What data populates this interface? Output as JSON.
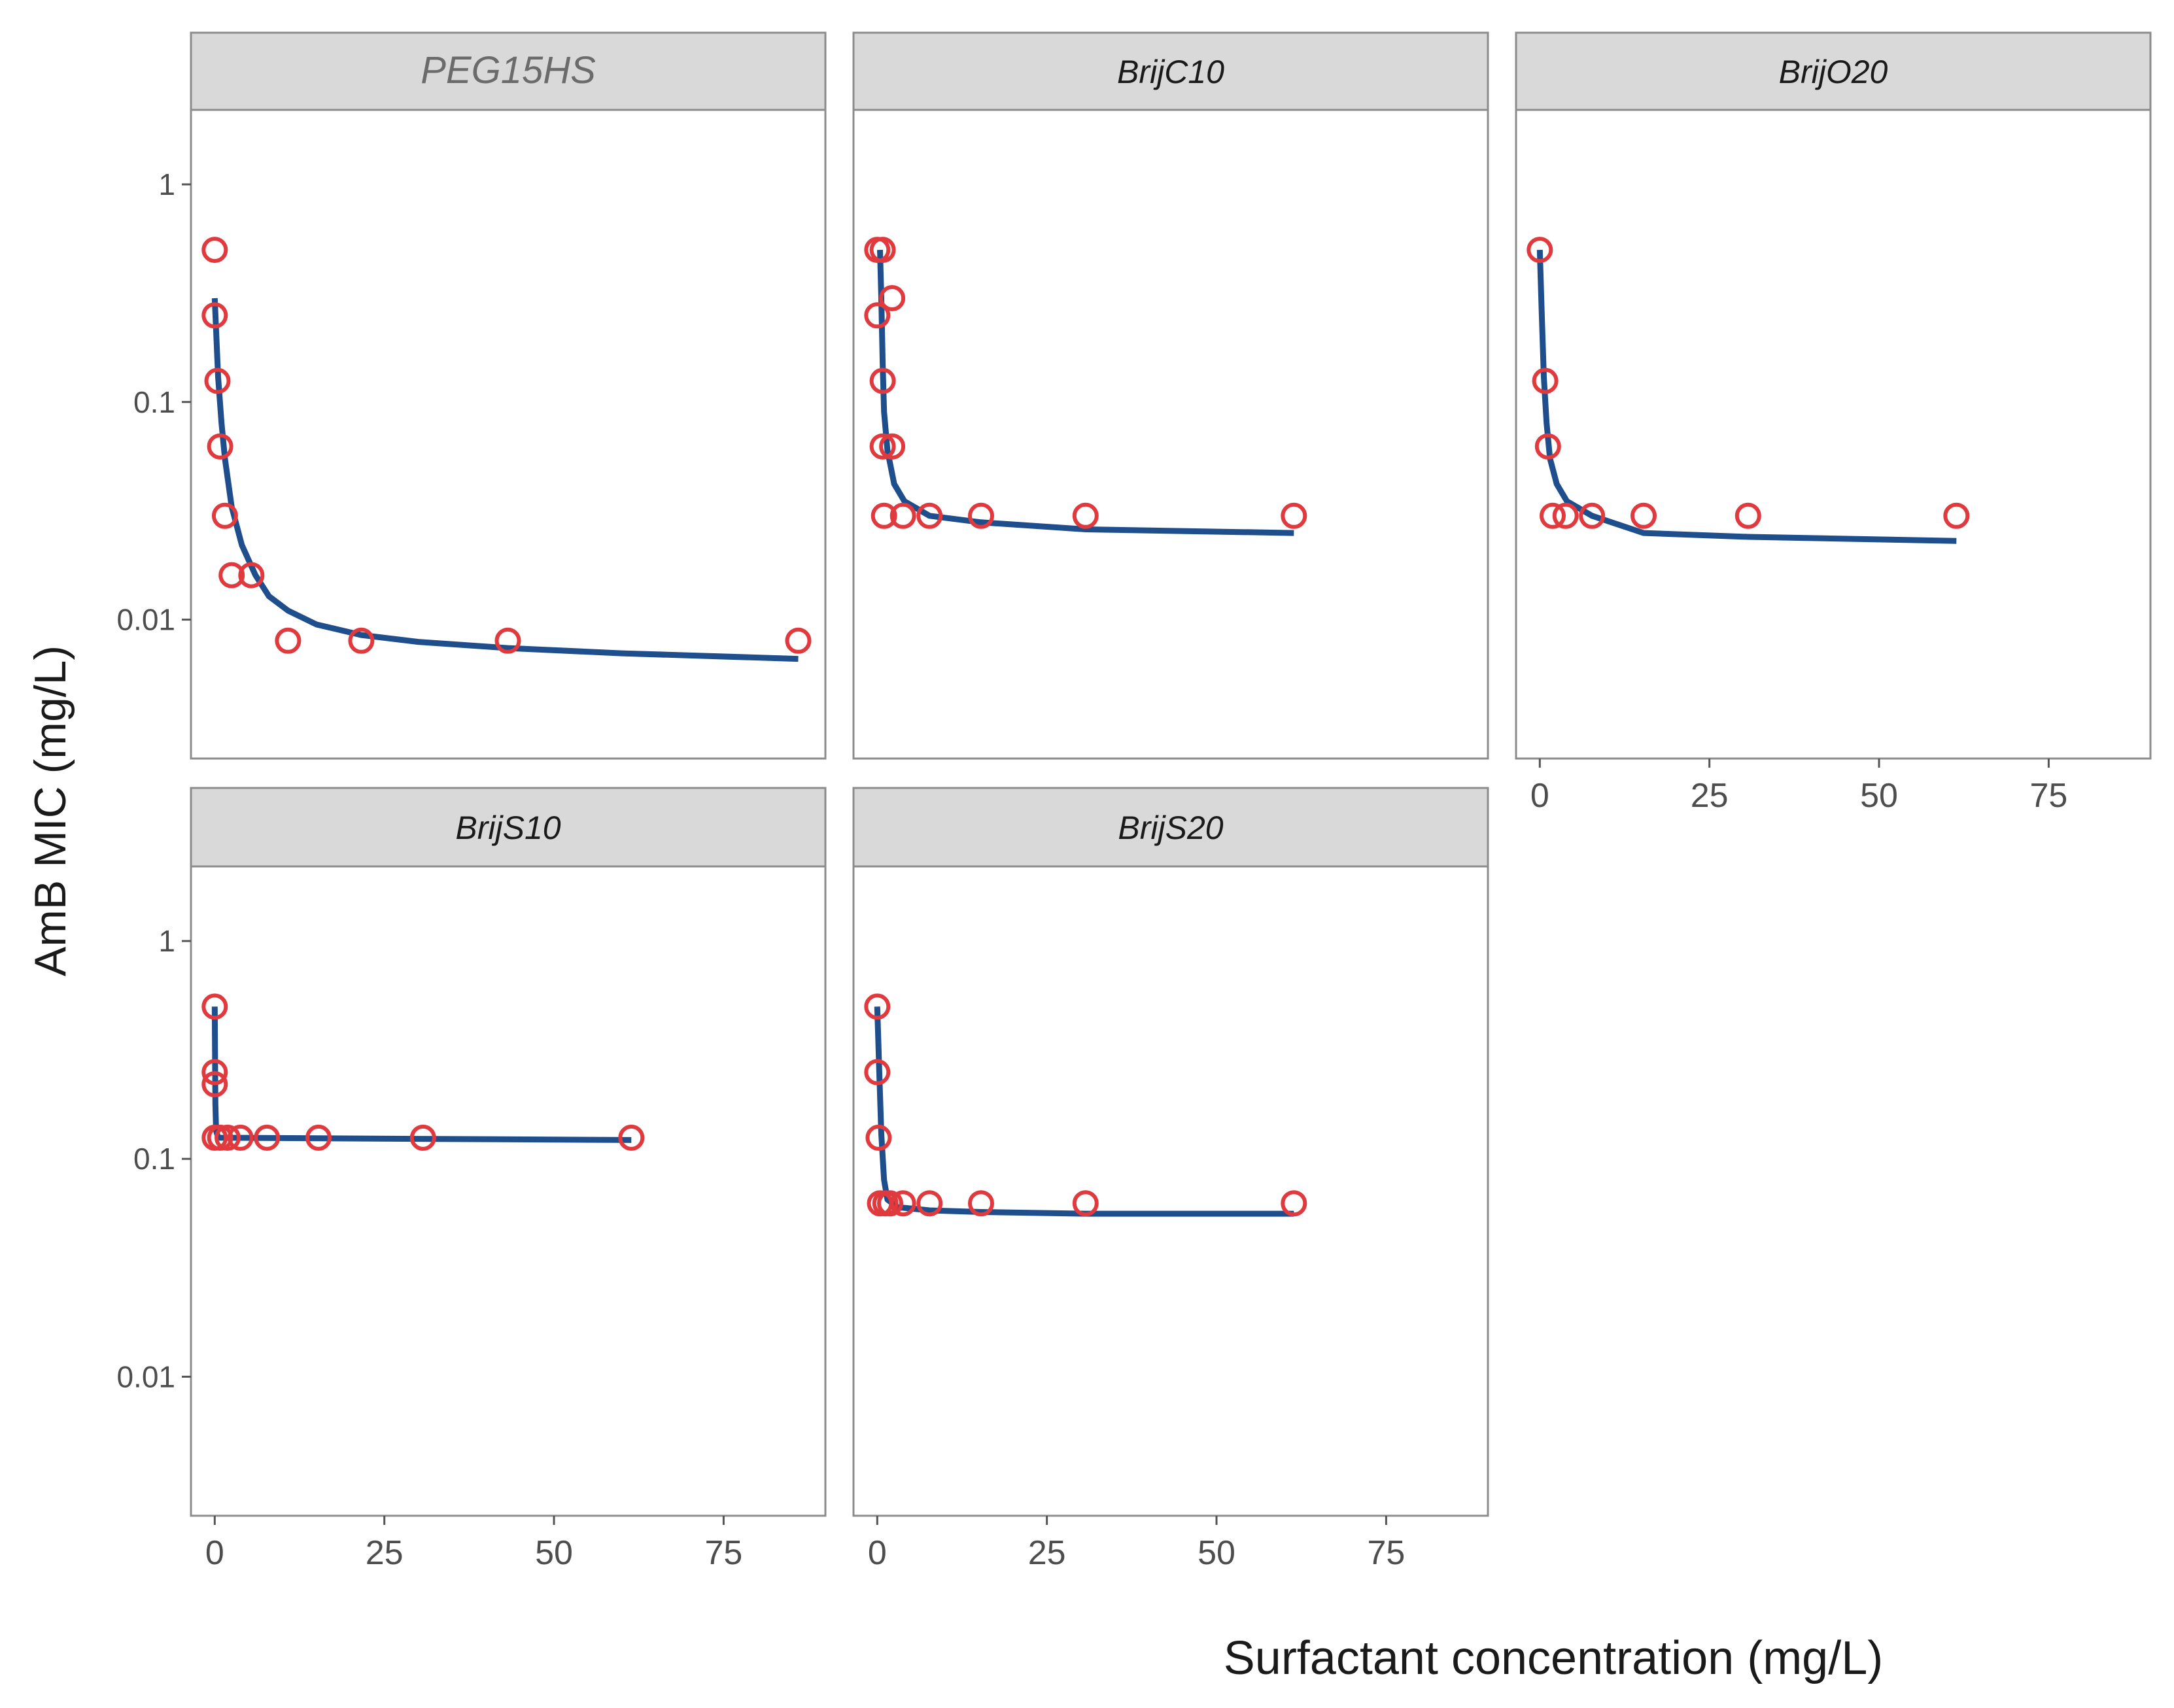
{
  "chart_data": {
    "type": "scatter",
    "kind": "faceted scatter with fitted curves",
    "xlabel": "Surfactant concentration (mg/L)",
    "ylabel": "AmB MIC (mg/L)",
    "xlim": [
      -3.5,
      90
    ],
    "x_ticks": [
      0,
      25,
      50,
      75
    ],
    "x_tick_labels": [
      "0",
      "25",
      "50",
      "75"
    ],
    "y_scale": "log10",
    "ylim": [
      0.0023,
      2.2
    ],
    "y_ticks": [
      1,
      0.1,
      0.01
    ],
    "y_tick_labels": [
      "1",
      "0.1",
      "0.01"
    ],
    "grid": false,
    "colors": {
      "points": "#e03a3e",
      "curve": "#1f4e8c",
      "strip": "#d9d9d9",
      "border": "#8c8c8c",
      "tick_text": "#4d4d4d"
    },
    "panels": [
      {
        "title": "PEG15HS",
        "points": [
          [
            0,
            0.5
          ],
          [
            0,
            0.25
          ],
          [
            0.4,
            0.125
          ],
          [
            0.8,
            0.0625
          ],
          [
            1.5,
            0.03
          ],
          [
            2.5,
            0.016
          ],
          [
            5.4,
            0.016
          ],
          [
            10.8,
            0.008
          ],
          [
            21.6,
            0.008
          ],
          [
            43.2,
            0.008
          ],
          [
            86,
            0.008
          ]
        ],
        "curve": [
          [
            0,
            0.3
          ],
          [
            0.5,
            0.13
          ],
          [
            1,
            0.08
          ],
          [
            1.5,
            0.055
          ],
          [
            2.5,
            0.033
          ],
          [
            4,
            0.022
          ],
          [
            6,
            0.016
          ],
          [
            8,
            0.0128
          ],
          [
            10.8,
            0.011
          ],
          [
            15,
            0.0095
          ],
          [
            21.6,
            0.0085
          ],
          [
            30,
            0.0079
          ],
          [
            43.2,
            0.0074
          ],
          [
            60,
            0.007
          ],
          [
            86,
            0.0066
          ]
        ]
      },
      {
        "title": "BrijC10",
        "points": [
          [
            0,
            0.5
          ],
          [
            0.8,
            0.5
          ],
          [
            2.2,
            0.3
          ],
          [
            0,
            0.25
          ],
          [
            0.8,
            0.125
          ],
          [
            0.8,
            0.0625
          ],
          [
            2.2,
            0.0625
          ],
          [
            1,
            0.03
          ],
          [
            3.8,
            0.03
          ],
          [
            7.7,
            0.03
          ],
          [
            15.3,
            0.03
          ],
          [
            30.7,
            0.03
          ],
          [
            61.4,
            0.03
          ]
        ],
        "curve": [
          [
            0.4,
            0.5
          ],
          [
            0.6,
            0.3
          ],
          [
            0.8,
            0.15
          ],
          [
            1,
            0.09
          ],
          [
            1.5,
            0.06
          ],
          [
            2.5,
            0.042
          ],
          [
            4,
            0.035
          ],
          [
            7.7,
            0.03
          ],
          [
            15.3,
            0.028
          ],
          [
            30.7,
            0.026
          ],
          [
            61.4,
            0.025
          ]
        ]
      },
      {
        "title": "BrijO20",
        "points": [
          [
            0,
            0.5
          ],
          [
            0.8,
            0.125
          ],
          [
            1.2,
            0.0625
          ],
          [
            1.9,
            0.03
          ],
          [
            3.8,
            0.03
          ],
          [
            7.7,
            0.03
          ],
          [
            15.3,
            0.03
          ],
          [
            30.7,
            0.03
          ],
          [
            61.4,
            0.03
          ]
        ],
        "curve": [
          [
            0,
            0.5
          ],
          [
            0.3,
            0.25
          ],
          [
            0.6,
            0.13
          ],
          [
            1,
            0.08
          ],
          [
            1.5,
            0.055
          ],
          [
            2.5,
            0.042
          ],
          [
            4,
            0.035
          ],
          [
            7.7,
            0.03
          ],
          [
            15.3,
            0.025
          ],
          [
            30.7,
            0.024
          ],
          [
            61.4,
            0.023
          ]
        ]
      },
      {
        "title": "BrijS10",
        "points": [
          [
            0,
            0.5
          ],
          [
            0,
            0.25
          ],
          [
            0,
            0.22
          ],
          [
            0,
            0.125
          ],
          [
            0.8,
            0.125
          ],
          [
            1.9,
            0.125
          ],
          [
            3.8,
            0.125
          ],
          [
            7.7,
            0.125
          ],
          [
            15.3,
            0.125
          ],
          [
            30.7,
            0.125
          ],
          [
            61.4,
            0.125
          ]
        ],
        "curve": [
          [
            0,
            0.5
          ],
          [
            0.05,
            0.3
          ],
          [
            0.1,
            0.18
          ],
          [
            0.2,
            0.135
          ],
          [
            0.5,
            0.125
          ],
          [
            61.4,
            0.122
          ]
        ]
      },
      {
        "title": "BrijS20",
        "points": [
          [
            0,
            0.5
          ],
          [
            0,
            0.25
          ],
          [
            0.2,
            0.125
          ],
          [
            0.4,
            0.0625
          ],
          [
            1.2,
            0.0625
          ],
          [
            1.9,
            0.0625
          ],
          [
            3.8,
            0.0625
          ],
          [
            7.7,
            0.0625
          ],
          [
            15.3,
            0.0625
          ],
          [
            30.7,
            0.0625
          ],
          [
            61.4,
            0.0625
          ]
        ],
        "curve": [
          [
            0,
            0.5
          ],
          [
            0.3,
            0.25
          ],
          [
            0.6,
            0.13
          ],
          [
            1,
            0.08
          ],
          [
            1.5,
            0.065
          ],
          [
            3,
            0.06
          ],
          [
            7.7,
            0.058
          ],
          [
            15.3,
            0.057
          ],
          [
            30.7,
            0.056
          ],
          [
            61.4,
            0.056
          ]
        ]
      }
    ]
  }
}
